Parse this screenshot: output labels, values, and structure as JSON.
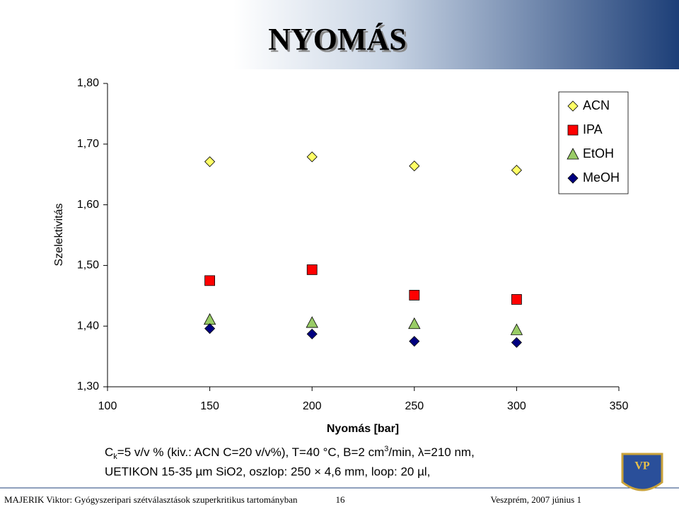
{
  "slide": {
    "title": "NYOMÁS",
    "notes": [
      [
        "C",
        "k",
        "=5 v/v % (kiv.: ACN C=20 v/v%), T=40 °C, B=2 cm",
        "3",
        "/min, λ=210 nm,"
      ],
      [
        "UETIKON 15-35 µm SiO2, oszlop: 250 × 4,6 mm, loop: 20 µl,"
      ]
    ],
    "footer": {
      "left": "MAJERIK Viktor: Gyógyszeripari szétválasztások szuperkritikus tartományban",
      "page": "16",
      "right": "Veszprém, 2007 június 1"
    },
    "logo": "VP"
  },
  "chart_data": {
    "type": "scatter",
    "x_label": "Nyomás [bar]",
    "y_label": "Szelektivitás",
    "x": [
      150,
      200,
      250,
      300
    ],
    "series": [
      {
        "name": "ACN",
        "color": "#ffff66",
        "marker": "diamond",
        "values": [
          1.671,
          1.679,
          1.664,
          1.657
        ]
      },
      {
        "name": "IPA",
        "color": "#ff0000",
        "marker": "square",
        "values": [
          1.475,
          1.493,
          1.451,
          1.444
        ]
      },
      {
        "name": "EtOH",
        "color": "#99cc66",
        "marker": "triangle",
        "values": [
          1.411,
          1.406,
          1.404,
          1.394
        ]
      },
      {
        "name": "MeOH",
        "color": "#000080",
        "marker": "diamond",
        "values": [
          1.396,
          1.387,
          1.375,
          1.373
        ]
      }
    ],
    "xlim": [
      100,
      350
    ],
    "xticks": [
      100,
      150,
      200,
      250,
      300,
      350
    ],
    "ylim": [
      1.3,
      1.8
    ],
    "yticks": [
      {
        "value": 1.3,
        "label": "1,30"
      },
      {
        "value": 1.4,
        "label": "1,40"
      },
      {
        "value": 1.5,
        "label": "1,50"
      },
      {
        "value": 1.6,
        "label": "1,60"
      },
      {
        "value": 1.7,
        "label": "1,70"
      },
      {
        "value": 1.8,
        "label": "1,80"
      }
    ],
    "legend": "top-right"
  }
}
